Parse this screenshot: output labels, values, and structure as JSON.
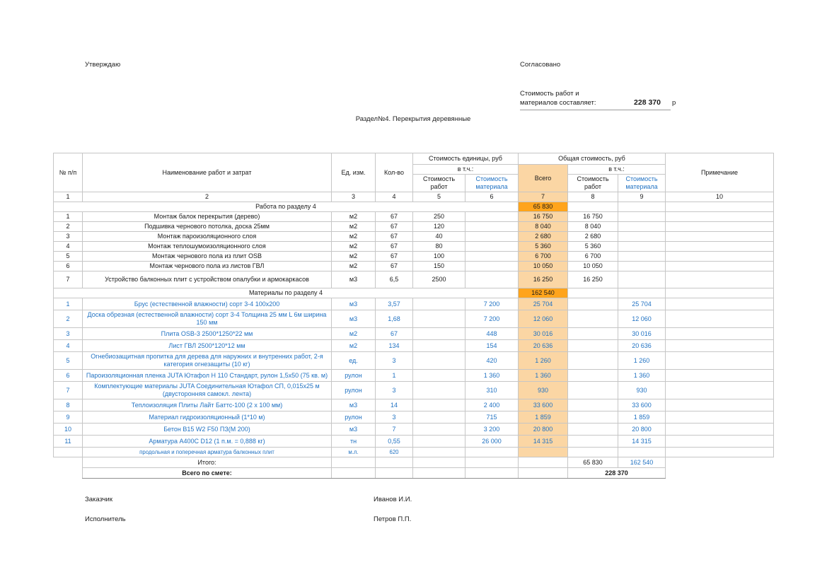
{
  "colors": {
    "accent_orange": "#FFA41C",
    "accent_peach": "#FBD6A4",
    "blue_text": "#2273C3",
    "border_gray": "#C6C6C6"
  },
  "page": {
    "approve_label": "Утверждаю",
    "agree_label": "Согласовано",
    "cost_statement_line1": "Стоимость работ и",
    "cost_statement_line2": "материалов составляет:",
    "total_amount": "228 370",
    "currency": "р",
    "section_title": "Раздел№4. Перекрытия деревянные"
  },
  "signatures": {
    "customer_label": "Заказчик",
    "customer_name": "Иванов И.И.",
    "contractor_label": "Исполнитель",
    "contractor_name": "Петров П.П."
  },
  "table": {
    "header": {
      "col_num": "№ п/п",
      "col_name": "Наименование работ и затрат",
      "col_unit": "Ед. изм.",
      "col_qty": "Кол-во",
      "unit_cost_group": "Стоимость единицы, руб",
      "total_cost_group": "Общая стоимость, руб",
      "incl": "в т.ч.:",
      "work_cost": "Стоимость работ",
      "material_cost": "Стоимость материала",
      "total": "Всего",
      "note": "Примечание",
      "col_numbers": [
        "1",
        "2",
        "3",
        "4",
        "5",
        "6",
        "7",
        "8",
        "9",
        "10"
      ]
    },
    "rows": [
      {
        "type": "section",
        "name": "Работа по разделу 4",
        "total": "65 830"
      },
      {
        "type": "work",
        "num": "1",
        "name": "Монтаж балок перекрытия (дерево)",
        "unit": "м2",
        "qty": "67",
        "unit_work": "250",
        "unit_mat": "",
        "total": "16 750",
        "sum_work": "16 750",
        "sum_mat": "",
        "note": ""
      },
      {
        "type": "work",
        "num": "2",
        "name": "Подшивка чернового потолка, доска 25мм",
        "unit": "м2",
        "qty": "67",
        "unit_work": "120",
        "unit_mat": "",
        "total": "8 040",
        "sum_work": "8 040",
        "sum_mat": "",
        "note": ""
      },
      {
        "type": "work",
        "num": "3",
        "name": "Монтаж пароизоляционного слоя",
        "unit": "м2",
        "qty": "67",
        "unit_work": "40",
        "unit_mat": "",
        "total": "2 680",
        "sum_work": "2 680",
        "sum_mat": "",
        "note": ""
      },
      {
        "type": "work",
        "num": "4",
        "name": "Монтаж теплошумоизоляционного слоя",
        "unit": "м2",
        "qty": "67",
        "unit_work": "80",
        "unit_mat": "",
        "total": "5 360",
        "sum_work": "5 360",
        "sum_mat": "",
        "note": ""
      },
      {
        "type": "work",
        "num": "5",
        "name": "Монтаж чернового пола из плит OSB",
        "unit": "м2",
        "qty": "67",
        "unit_work": "100",
        "unit_mat": "",
        "total": "6 700",
        "sum_work": "6 700",
        "sum_mat": "",
        "note": ""
      },
      {
        "type": "work",
        "num": "6",
        "name": "Монтаж чернового пола из листов ГВЛ",
        "unit": "м2",
        "qty": "67",
        "unit_work": "150",
        "unit_mat": "",
        "total": "10 050",
        "sum_work": "10 050",
        "sum_mat": "",
        "note": ""
      },
      {
        "type": "work",
        "tall": true,
        "num": "7",
        "name": "Устройство балконных плит с устройством опалубки и армокаркасов",
        "unit": "м3",
        "qty": "6,5",
        "unit_work": "2500",
        "unit_mat": "",
        "total": "16 250",
        "sum_work": "16 250",
        "sum_mat": "",
        "note": ""
      },
      {
        "type": "section",
        "name": "Материалы по разделу 4",
        "total": "162 540"
      },
      {
        "type": "material",
        "num": "1",
        "name": "Брус (естественной влажности) сорт 3-4 100х200",
        "unit": "м3",
        "qty": "3,57",
        "unit_work": "",
        "unit_mat": "7 200",
        "total": "25 704",
        "sum_work": "",
        "sum_mat": "25 704",
        "note": ""
      },
      {
        "type": "material",
        "num": "2",
        "name": "Доска обрезная (естественной влажности) сорт 3-4 Толщина 25 мм L 6м ширина 150 мм",
        "unit": "м3",
        "qty": "1,68",
        "unit_work": "",
        "unit_mat": "7 200",
        "total": "12 060",
        "sum_work": "",
        "sum_mat": "12 060",
        "note": ""
      },
      {
        "type": "material",
        "num": "3",
        "name": "Плита OSB-3 2500*1250*22 мм",
        "unit": "м2",
        "qty": "67",
        "unit_work": "",
        "unit_mat": "448",
        "total": "30 016",
        "sum_work": "",
        "sum_mat": "30 016",
        "note": ""
      },
      {
        "type": "material",
        "num": "4",
        "name": "Лист ГВЛ 2500*120*12 мм",
        "unit": "м2",
        "qty": "134",
        "unit_work": "",
        "unit_mat": "154",
        "total": "20 636",
        "sum_work": "",
        "sum_mat": "20 636",
        "note": ""
      },
      {
        "type": "material",
        "num": "5",
        "name": "Огнебиозащитная пропитка для дерева для наружних и внутренних работ, 2-я категория огнезащиты (10 кг)",
        "unit": "ед.",
        "qty": "3",
        "unit_work": "",
        "unit_mat": "420",
        "total": "1 260",
        "sum_work": "",
        "sum_mat": "1 260",
        "note": ""
      },
      {
        "type": "material",
        "num": "6",
        "name": "Пароизоляционная пленка JUTA Ютафол Н 110 Стандарт, рулон 1,5х50 (75 кв. м)",
        "unit": "рулон",
        "qty": "1",
        "unit_work": "",
        "unit_mat": "1 360",
        "total": "1 360",
        "sum_work": "",
        "sum_mat": "1 360",
        "note": ""
      },
      {
        "type": "material",
        "num": "7",
        "name": "Комплектующие материалы JUTA Соединительная Ютафол СП, 0,015х25 м (двусторонняя самокл. лента)",
        "unit": "рулон",
        "qty": "3",
        "unit_work": "",
        "unit_mat": "310",
        "total": "930",
        "sum_work": "",
        "sum_mat": "930",
        "note": ""
      },
      {
        "type": "material",
        "num": "8",
        "name": "Теплоизоляция Плиты Лайт Баттс-100 (2 х 100 мм)",
        "unit": "м3",
        "qty": "14",
        "unit_work": "",
        "unit_mat": "2 400",
        "total": "33 600",
        "sum_work": "",
        "sum_mat": "33 600",
        "note": ""
      },
      {
        "type": "material",
        "num": "9",
        "name": "Материал гидроизоляционный (1*10 м)",
        "unit": "рулон",
        "qty": "3",
        "unit_work": "",
        "unit_mat": "715",
        "total": "1 859",
        "sum_work": "",
        "sum_mat": "1 859",
        "note": ""
      },
      {
        "type": "material",
        "num": "10",
        "name": "Бетон B15 W2 F50 ПЗ(М 200)",
        "unit": "м3",
        "qty": "7",
        "unit_work": "",
        "unit_mat": "3 200",
        "total": "20 800",
        "sum_work": "",
        "sum_mat": "20 800",
        "note": ""
      },
      {
        "type": "material",
        "num": "11",
        "name": "Арматура А400С D12 (1 п.м. = 0,888 кг)",
        "unit": "тн",
        "qty": "0,55",
        "unit_work": "",
        "unit_mat": "26 000",
        "total": "14 315",
        "sum_work": "",
        "sum_mat": "14 315",
        "note": ""
      },
      {
        "type": "material-sub",
        "num": "",
        "name": "продольная и поперечная арматура балконных плит",
        "unit": "м.л.",
        "qty": "620",
        "unit_work": "",
        "unit_mat": "",
        "total": "",
        "sum_work": "",
        "sum_mat": "",
        "note": ""
      },
      {
        "type": "itogo",
        "name": "Итого:",
        "sum_work": "65 830",
        "sum_mat": "162 540"
      },
      {
        "type": "grand",
        "name": "Всего по смете:",
        "grand_total": "228 370"
      }
    ]
  }
}
